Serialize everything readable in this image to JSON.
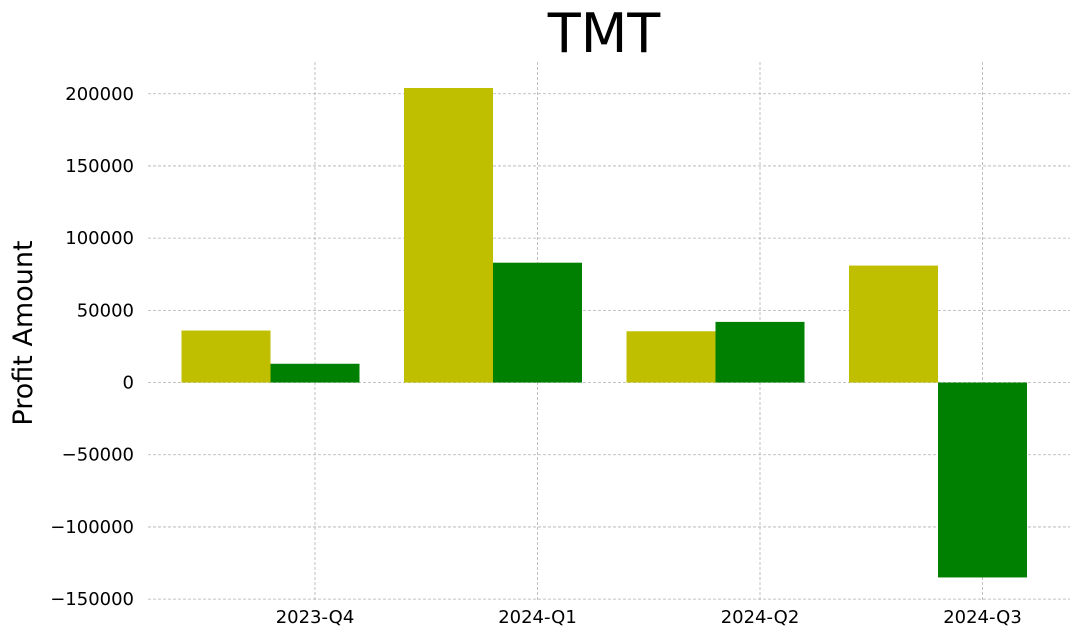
{
  "chart_data": {
    "type": "bar",
    "title": "TMT",
    "xlabel": "",
    "ylabel": "Profit Amount",
    "categories": [
      "2023-Q4",
      "2024-Q1",
      "2024-Q2",
      "2024-Q3"
    ],
    "series": [
      {
        "values": [
          36000,
          204000,
          35500,
          81000
        ],
        "color": "#bfbf00"
      },
      {
        "values": [
          13000,
          83000,
          42000,
          -135000
        ],
        "color": "#008000"
      }
    ],
    "ylim": [
      -152000,
      222000
    ],
    "yticks": [
      -150000,
      -100000,
      -50000,
      0,
      50000,
      100000,
      150000,
      200000
    ],
    "ytick_labels": [
      "−150000",
      "−100000",
      "−50000",
      "0",
      "50000",
      "100000",
      "150000",
      "200000"
    ],
    "grid": true,
    "legend": "none"
  }
}
